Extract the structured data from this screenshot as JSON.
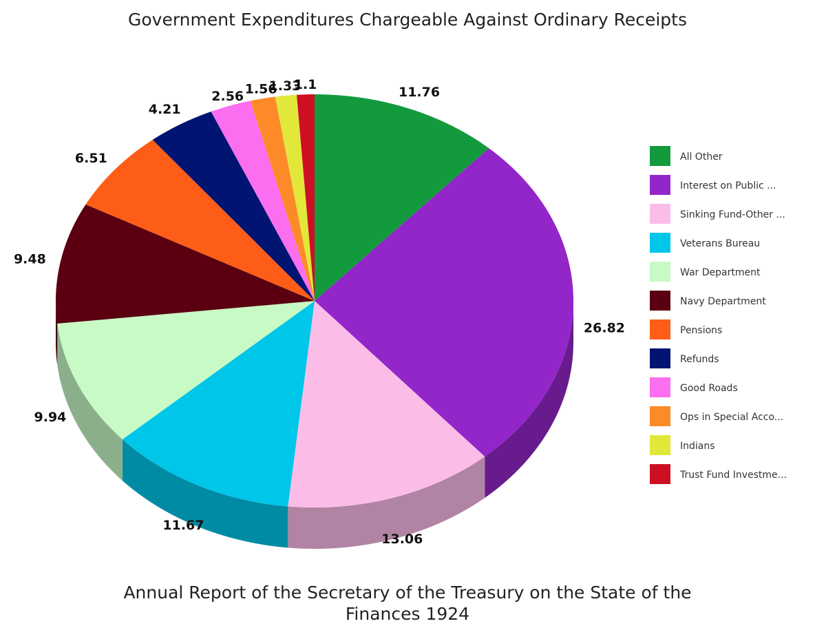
{
  "chart_data": {
    "type": "pie",
    "title": "Government Expenditures Chargeable Against Ordinary Receipts",
    "subtitle_lines": [
      "Annual Report of the Secretary of the Treasury on the State of the",
      "Finances 1924"
    ],
    "legend_position": "right",
    "categories": [
      "All Other",
      "Interest on Public ...",
      "Sinking Fund-Other ...",
      "Veterans Bureau",
      "War Department",
      "Navy Department",
      "Pensions",
      "Refunds",
      "Good Roads",
      "Ops in Special Acco...",
      "Indians",
      "Trust Fund Investme..."
    ],
    "values": [
      11.76,
      26.82,
      13.06,
      11.67,
      9.94,
      9.48,
      6.51,
      4.21,
      2.56,
      1.56,
      1.33,
      1.1
    ],
    "value_labels": [
      "11.76",
      "26.82",
      "13.06",
      "11.67",
      "9.94",
      "9.48",
      "6.51",
      "4.21",
      "2.56",
      "1.56",
      "1.33",
      "1.1"
    ],
    "colors": [
      "#139a3d",
      "#9326c8",
      "#fbbde8",
      "#00c6ea",
      "#c8fac6",
      "#5a0010",
      "#fd5d17",
      "#021472",
      "#fb6ef0",
      "#fd8a28",
      "#e2e83a",
      "#cd0f24"
    ]
  }
}
